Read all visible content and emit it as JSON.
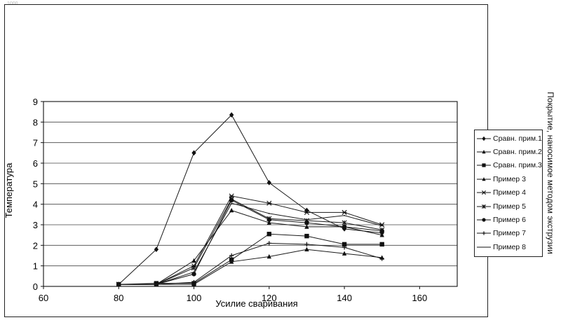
{
  "page_id": "1000",
  "side_title": "Покрытие, наносимое методом экструзии",
  "chart_data": {
    "type": "line",
    "title": "",
    "xlabel": "Усилие сваривания",
    "ylabel": "Температура",
    "xlim": [
      60,
      170
    ],
    "ylim": [
      0,
      9
    ],
    "xticks": [
      60,
      80,
      100,
      120,
      140,
      160
    ],
    "yticks": [
      0,
      1,
      2,
      3,
      4,
      5,
      6,
      7,
      8,
      9
    ],
    "grid": true,
    "legend_position": "right",
    "x": [
      80,
      90,
      100,
      110,
      120,
      130,
      140,
      150
    ],
    "series": [
      {
        "name": "Сравн. прим.1",
        "marker": "diamond",
        "values": [
          0.1,
          1.8,
          6.5,
          8.35,
          5.05,
          3.7,
          2.8,
          2.6
        ]
      },
      {
        "name": "Сравн. прим.2",
        "marker": "triangle",
        "values": [
          0.1,
          0.1,
          0.1,
          1.2,
          1.45,
          1.8,
          1.6,
          1.4
        ]
      },
      {
        "name": "Сравн. прим.3",
        "marker": "square",
        "values": [
          0.1,
          0.15,
          0.15,
          1.3,
          2.55,
          2.45,
          2.05,
          2.05
        ]
      },
      {
        "name": "Пример 3",
        "marker": "triangle",
        "values": [
          0.1,
          0.1,
          1.25,
          3.7,
          3.1,
          2.9,
          2.9,
          2.5
        ]
      },
      {
        "name": "Пример 4",
        "marker": "xbar",
        "values": [
          0.1,
          0.1,
          1.0,
          4.4,
          4.05,
          3.6,
          3.6,
          3.0
        ]
      },
      {
        "name": "Пример 5",
        "marker": "asterisk",
        "values": [
          0.1,
          0.1,
          0.9,
          4.25,
          3.3,
          3.2,
          3.1,
          2.75
        ]
      },
      {
        "name": "Пример 6",
        "marker": "circle",
        "values": [
          0.1,
          0.1,
          0.6,
          4.2,
          3.25,
          3.1,
          2.9,
          2.7
        ]
      },
      {
        "name": "Пример 7",
        "marker": "plus",
        "values": [
          0.1,
          0.1,
          0.2,
          1.5,
          2.1,
          2.05,
          1.9,
          1.35
        ]
      },
      {
        "name": "Пример 8",
        "marker": "none",
        "values": [
          0.1,
          0.1,
          0.7,
          4.05,
          3.55,
          3.25,
          3.45,
          2.95
        ]
      }
    ]
  }
}
